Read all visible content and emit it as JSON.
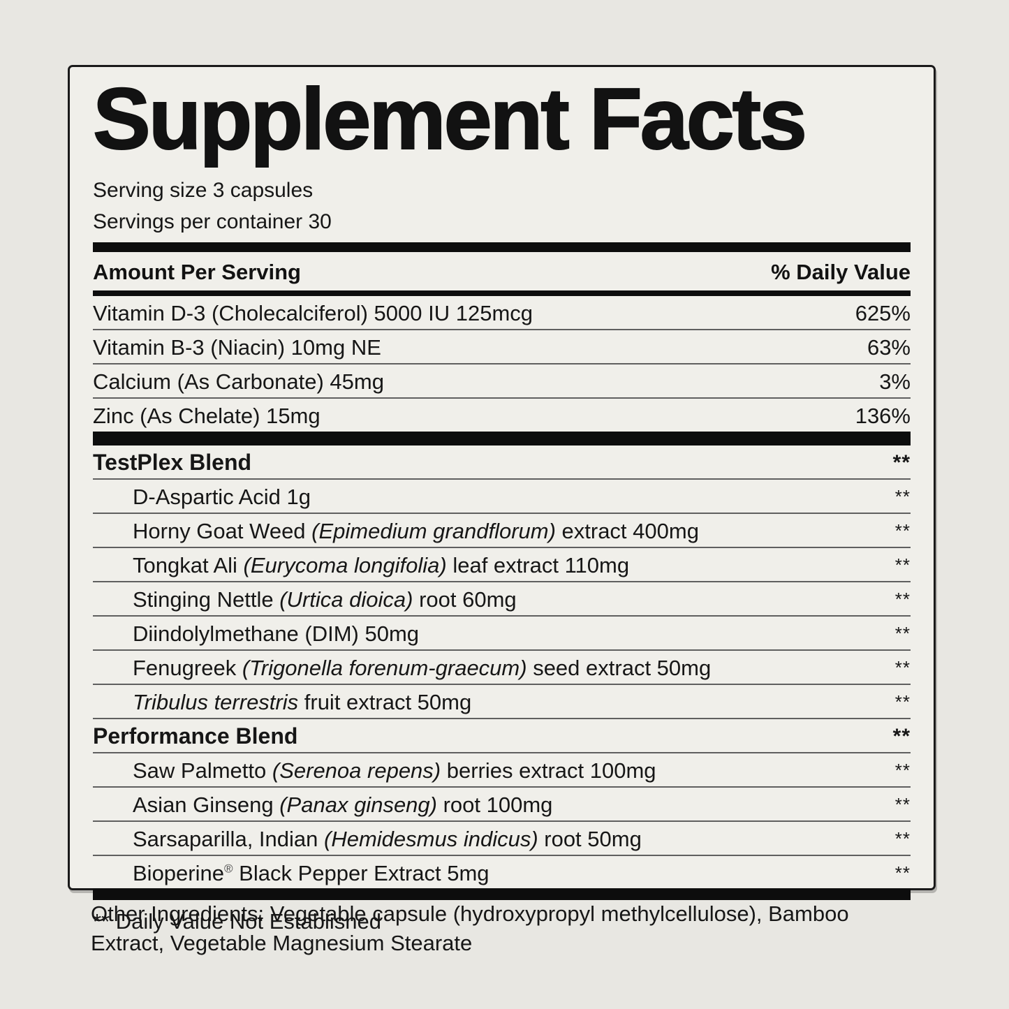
{
  "label": {
    "title": "Supplement Facts",
    "serving_size": "Serving size 3 capsules",
    "servings_per_container": "Servings per container 30",
    "columns": {
      "left": "Amount Per Serving",
      "right": "% Daily Value"
    },
    "nutrients": [
      {
        "name": "Vitamin D-3 (Cholecalciferol) 5000 IU 125mcg",
        "dv": "625%"
      },
      {
        "name": "Vitamin B-3 (Niacin) 10mg NE",
        "dv": "63%"
      },
      {
        "name": "Calcium (As Carbonate) 45mg",
        "dv": "3%"
      },
      {
        "name": "Zinc (As Chelate) 15mg",
        "dv": "136%"
      }
    ],
    "blends": [
      {
        "name": "TestPlex Blend",
        "dv": "**",
        "ingredients": [
          {
            "parts": [
              {
                "t": "D-Aspartic Acid 1g"
              }
            ],
            "dv": "**"
          },
          {
            "parts": [
              {
                "t": "Horny Goat Weed "
              },
              {
                "t": "(Epimedium grandflorum)",
                "i": true
              },
              {
                "t": " extract 400mg"
              }
            ],
            "dv": "**"
          },
          {
            "parts": [
              {
                "t": "Tongkat Ali "
              },
              {
                "t": "(Eurycoma longifolia)",
                "i": true
              },
              {
                "t": " leaf extract 110mg"
              }
            ],
            "dv": "**"
          },
          {
            "parts": [
              {
                "t": "Stinging Nettle "
              },
              {
                "t": "(Urtica dioica)",
                "i": true
              },
              {
                "t": " root 60mg"
              }
            ],
            "dv": "**"
          },
          {
            "parts": [
              {
                "t": "Diindolylmethane (DIM) 50mg"
              }
            ],
            "dv": "**"
          },
          {
            "parts": [
              {
                "t": "Fenugreek "
              },
              {
                "t": "(Trigonella forenum-graecum)",
                "i": true
              },
              {
                "t": " seed extract 50mg"
              }
            ],
            "dv": "**"
          },
          {
            "parts": [
              {
                "t": "Tribulus terrestris",
                "i": true
              },
              {
                "t": " fruit extract 50mg"
              }
            ],
            "dv": "**"
          }
        ]
      },
      {
        "name": "Performance Blend",
        "dv": "**",
        "ingredients": [
          {
            "parts": [
              {
                "t": "Saw Palmetto "
              },
              {
                "t": "(Serenoa repens)",
                "i": true
              },
              {
                "t": " berries extract 100mg"
              }
            ],
            "dv": "**"
          },
          {
            "parts": [
              {
                "t": "Asian Ginseng "
              },
              {
                "t": "(Panax ginseng)",
                "i": true
              },
              {
                "t": " root 100mg"
              }
            ],
            "dv": "**"
          },
          {
            "parts": [
              {
                "t": "Sarsaparilla, Indian "
              },
              {
                "t": "(Hemidesmus indicus)",
                "i": true
              },
              {
                "t": " root 50mg"
              }
            ],
            "dv": "**"
          },
          {
            "parts": [
              {
                "t": "Bioperine"
              },
              {
                "t": "®",
                "sup": true
              },
              {
                "t": " Black Pepper Extract 5mg"
              }
            ],
            "dv": "**"
          }
        ]
      }
    ],
    "footnote": "** Daily Value Not Established",
    "other_ingredients": "Other Ingredients: Vegetable capsule (hydroxypropyl methylcellulose), Bamboo Extract, Vegetable Magnesium Stearate"
  },
  "colors": {
    "page_bg": "#e8e7e2",
    "panel_bg": "#f0efea",
    "ink": "#121212",
    "rule": "#5f5f5f",
    "bar": "#0d0d0d"
  }
}
